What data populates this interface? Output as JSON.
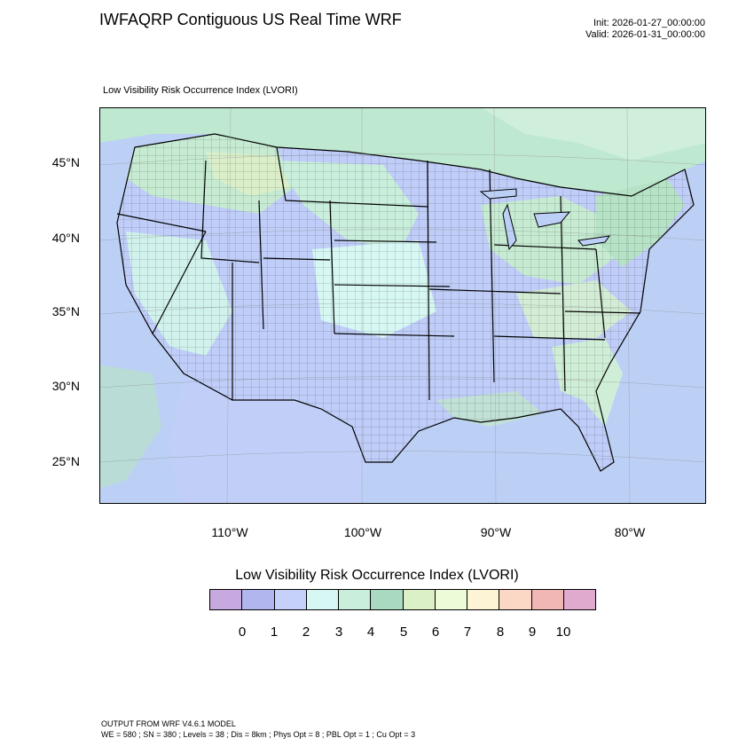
{
  "header": {
    "title": "IWFAQRP Contiguous US Real Time WRF",
    "init": "Init: 2026-01-27_00:00:00",
    "valid": "Valid: 2026-01-31_00:00:00"
  },
  "map": {
    "subtitle": "Low Visibility Risk Occurrence Index   (LVORI)",
    "lat_labels": [
      "45°N",
      "40°N",
      "35°N",
      "30°N",
      "25°N"
    ],
    "lon_labels": [
      "110°W",
      "100°W",
      "90°W",
      "80°W"
    ],
    "colors": {
      "land_blue": "#bfcdf8",
      "land_cyan": "#cdf3ee",
      "land_green": "#c6ebd2",
      "land_darkgreen": "#a9dcc0",
      "land_lightgreen": "#dcefc8",
      "ocean": "#bcd0f6",
      "border": "#000000"
    }
  },
  "colorbar": {
    "title": "Low Visibility Risk Occurrence Index  (LVORI)",
    "labels": [
      "0",
      "1",
      "2",
      "3",
      "4",
      "5",
      "6",
      "7",
      "8",
      "9",
      "10"
    ],
    "colors": [
      "#c8a9df",
      "#b1b7ee",
      "#c5d1fa",
      "#d6f7f3",
      "#c9eedc",
      "#a9d9c1",
      "#dcf0c8",
      "#eefbd9",
      "#fcf4d5",
      "#fbd7c5",
      "#f1b7b5",
      "#dfaacd"
    ]
  },
  "footer": {
    "line1": "OUTPUT FROM WRF V4.6.1 MODEL",
    "line2": "WE = 580 ; SN = 380 ; Levels = 38 ; Dis = 8km ; Phys Opt = 8 ; PBL Opt = 1 ; Cu Opt = 3"
  }
}
